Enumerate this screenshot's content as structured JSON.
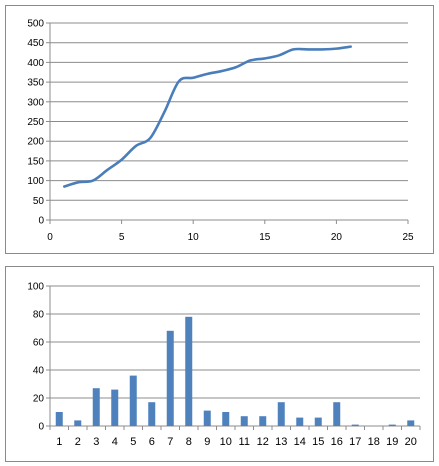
{
  "chart_data": [
    {
      "type": "line",
      "xlim": [
        0,
        25
      ],
      "ylim": [
        0,
        500
      ],
      "x_ticks": [
        0,
        5,
        10,
        15,
        20,
        25
      ],
      "y_ticks": [
        0,
        50,
        100,
        150,
        200,
        250,
        300,
        350,
        400,
        450,
        500
      ],
      "grid": "horizontal",
      "legend": "none",
      "color": "#4A7EBB",
      "series": [
        {
          "x": [
            1,
            2,
            3,
            4,
            5,
            6,
            7,
            8,
            9,
            10,
            11,
            12,
            13,
            14,
            15,
            16,
            17,
            18,
            19,
            20,
            21
          ],
          "y": [
            85,
            96,
            100,
            127,
            153,
            188,
            208,
            275,
            352,
            361,
            371,
            378,
            388,
            405,
            410,
            418,
            433,
            433,
            433,
            435,
            440
          ]
        }
      ]
    },
    {
      "type": "bar",
      "categories": [
        "1",
        "2",
        "3",
        "4",
        "5",
        "6",
        "7",
        "8",
        "9",
        "10",
        "11",
        "12",
        "13",
        "14",
        "15",
        "16",
        "17",
        "18",
        "19",
        "20"
      ],
      "ylim": [
        0,
        100
      ],
      "y_ticks": [
        0,
        20,
        40,
        60,
        80,
        100
      ],
      "grid": "horizontal",
      "legend": "none",
      "color": "#4F81BD",
      "series": [
        {
          "values": [
            10,
            4,
            27,
            26,
            36,
            17,
            68,
            78,
            11,
            10,
            7,
            7,
            17,
            6,
            6,
            17,
            1,
            0,
            1,
            4
          ]
        }
      ]
    }
  ]
}
